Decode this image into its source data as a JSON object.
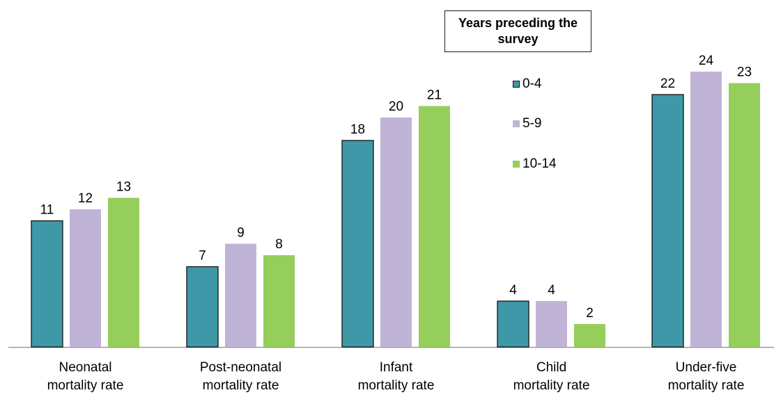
{
  "chart_data": {
    "type": "bar",
    "categories": [
      [
        "Neonatal",
        "mortality rate"
      ],
      [
        "Post-neonatal",
        "mortality rate"
      ],
      [
        "Infant",
        "mortality rate"
      ],
      [
        "Child",
        "mortality rate"
      ],
      [
        "Under-five",
        "mortality rate"
      ]
    ],
    "series": [
      {
        "name": "0-4",
        "values": [
          11,
          7,
          18,
          4,
          22
        ],
        "color": "#3e98a8"
      },
      {
        "name": "5-9",
        "values": [
          12,
          9,
          20,
          4,
          24
        ],
        "color": "#bfb4d6"
      },
      {
        "name": "10-14",
        "values": [
          13,
          8,
          21,
          2,
          23
        ],
        "color": "#95ce5a"
      }
    ],
    "legend_title": "Years preceding the survey",
    "legend_placement": "top-right",
    "data_labels": true,
    "grid": false
  }
}
